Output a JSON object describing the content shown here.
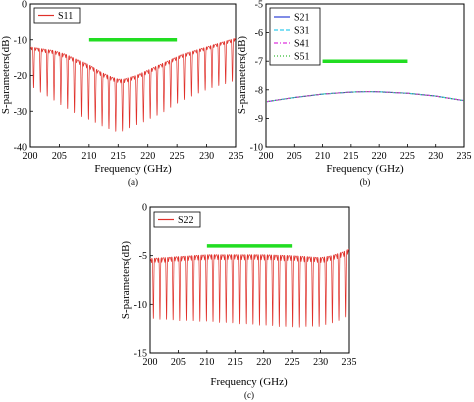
{
  "chart_data": [
    {
      "type": "line",
      "panel_label": "(a)",
      "xlabel": "Frequency (GHz)",
      "ylabel": "S-parameters(dB)",
      "xlim": [
        200,
        235
      ],
      "ylim": [
        -40,
        0
      ],
      "xticks": [
        "200",
        "205",
        "210",
        "215",
        "220",
        "225",
        "230",
        "235"
      ],
      "yticks": [
        "0",
        "-10",
        "-20",
        "-30",
        "-40"
      ],
      "legend_position": "top-left",
      "series": [
        {
          "name": "S11",
          "color": "#e0302a",
          "ripple_cycles_over_range": 30,
          "x": [
            200,
            202,
            204,
            206,
            208,
            210,
            212,
            214,
            215,
            216,
            218,
            220,
            222,
            224,
            226,
            228,
            230,
            232,
            234,
            235
          ],
          "upper_envelope": [
            -12,
            -12.5,
            -13,
            -14,
            -15.5,
            -17,
            -19,
            -20.5,
            -21,
            -21,
            -20,
            -18.5,
            -17,
            -15.5,
            -14,
            -13,
            -12,
            -11,
            -10,
            -9.5
          ],
          "lower_envelope": [
            -23,
            -25,
            -27,
            -29,
            -31,
            -32.5,
            -34,
            -35.5,
            -36,
            -35.5,
            -34,
            -32.5,
            -31,
            -29,
            -27,
            -25.5,
            -24,
            -23,
            -22,
            -21.5
          ]
        }
      ],
      "reference_band": {
        "color": "#22dd22",
        "x": [
          210,
          225
        ],
        "y": -10
      }
    },
    {
      "type": "line",
      "panel_label": "(b)",
      "xlabel": "Frequency (GHz)",
      "ylabel": "S-parameters(dB)",
      "xlim": [
        200,
        235
      ],
      "ylim": [
        -10,
        -5
      ],
      "xticks": [
        "200",
        "205",
        "210",
        "215",
        "220",
        "225",
        "230",
        "235"
      ],
      "yticks": [
        "-5",
        "-6",
        "-7",
        "-8",
        "-9",
        "-10"
      ],
      "legend_position": "top-left",
      "curve": {
        "x": [
          200,
          205,
          210,
          215,
          218,
          220,
          225,
          230,
          235
        ],
        "y": [
          -8.42,
          -8.27,
          -8.15,
          -8.08,
          -8.06,
          -8.07,
          -8.12,
          -8.22,
          -8.38
        ]
      },
      "series": [
        {
          "name": "S21",
          "color": "#2b3fd6",
          "dash": "solid"
        },
        {
          "name": "S31",
          "color": "#33ccee",
          "dash": "dash"
        },
        {
          "name": "S41",
          "color": "#dd33dd",
          "dash": "dashdot"
        },
        {
          "name": "S51",
          "color": "#33bb33",
          "dash": "dot"
        }
      ],
      "reference_band": {
        "color": "#22dd22",
        "x": [
          210,
          225
        ],
        "y": -7
      }
    },
    {
      "type": "line",
      "panel_label": "(c)",
      "xlabel": "Frequency (GHz)",
      "ylabel": "S-parameters(dB)",
      "xlim": [
        200,
        235
      ],
      "ylim": [
        -15,
        0
      ],
      "xticks": [
        "200",
        "205",
        "210",
        "215",
        "220",
        "225",
        "230",
        "235"
      ],
      "yticks": [
        "0",
        "-5",
        "-10",
        "-15"
      ],
      "legend_position": "top-left",
      "series": [
        {
          "name": "S22",
          "color": "#e0302a",
          "ripple_cycles_over_range": 30,
          "x": [
            200,
            205,
            210,
            215,
            220,
            225,
            230,
            232,
            234,
            235
          ],
          "upper_envelope": [
            -5.3,
            -5.1,
            -4.9,
            -4.9,
            -4.9,
            -5.0,
            -5.2,
            -5.0,
            -4.6,
            -4.3
          ],
          "lower_envelope": [
            -11.5,
            -11.7,
            -11.8,
            -12.0,
            -12.2,
            -12.4,
            -12.3,
            -12.0,
            -11.5,
            -11.2
          ]
        }
      ],
      "reference_band": {
        "color": "#22dd22",
        "x": [
          210,
          225
        ],
        "y": -4
      }
    }
  ]
}
